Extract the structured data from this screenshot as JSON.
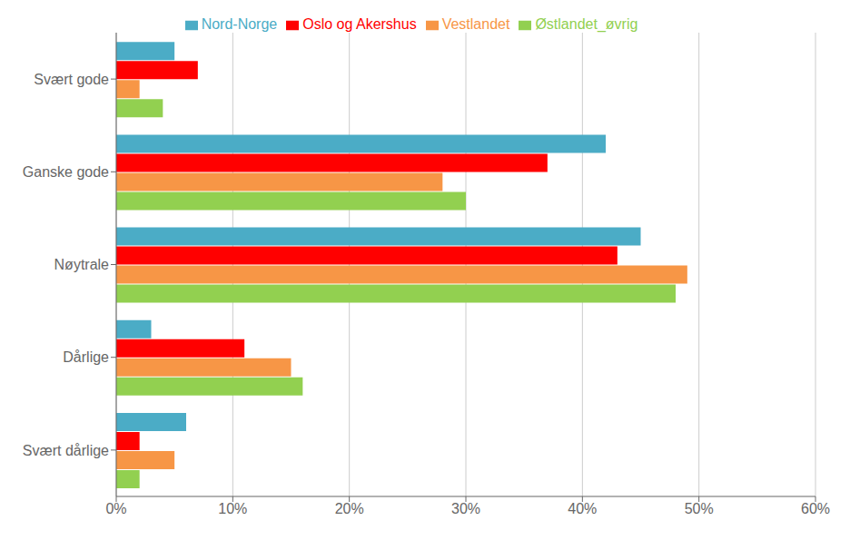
{
  "chart_data": {
    "type": "bar",
    "orientation": "horizontal",
    "categories": [
      "Svært gode",
      "Ganske gode",
      "Nøytrale",
      "Dårlige",
      "Svært dårlige"
    ],
    "series": [
      {
        "name": "Nord-Norge",
        "color": "#4BACC6",
        "values": [
          5,
          42,
          45,
          3,
          6
        ]
      },
      {
        "name": "Oslo og Akershus",
        "color": "#FF0000",
        "values": [
          7,
          37,
          43,
          11,
          2
        ]
      },
      {
        "name": "Vestlandet",
        "color": "#F79646",
        "values": [
          2,
          28,
          49,
          15,
          5
        ]
      },
      {
        "name": "Østlandet_øvrig",
        "color": "#92D050",
        "values": [
          4,
          30,
          48,
          16,
          2
        ]
      }
    ],
    "xlim": [
      0,
      60
    ],
    "xticks": [
      {
        "value": 0,
        "label": "0%"
      },
      {
        "value": 10,
        "label": "10%"
      },
      {
        "value": 20,
        "label": "20%"
      },
      {
        "value": 30,
        "label": "30%"
      },
      {
        "value": 40,
        "label": "40%"
      },
      {
        "value": 50,
        "label": "50%"
      },
      {
        "value": 60,
        "label": "60%"
      }
    ],
    "grid": true,
    "legend": "top"
  }
}
